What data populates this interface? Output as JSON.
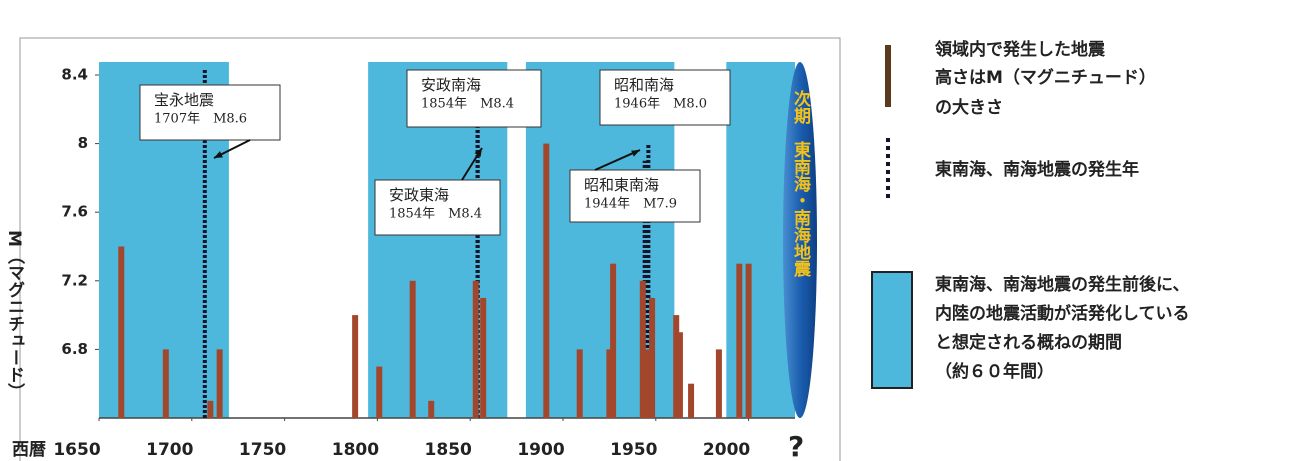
{
  "chart_data": {
    "type": "bar",
    "y_label": "M（マグニチュード）",
    "x_prefix": "西暦",
    "x_suffix": "?",
    "x": [
      1662,
      1686,
      1710,
      1715,
      1788,
      1801,
      1819,
      1829,
      1853,
      1857,
      1891,
      1909,
      1925,
      1927,
      1943,
      1945,
      1948,
      1961,
      1963,
      1969,
      1984,
      1995,
      2000
    ],
    "values": [
      7.4,
      6.8,
      6.5,
      6.8,
      7.0,
      6.7,
      7.2,
      6.5,
      7.2,
      7.1,
      8.0,
      6.8,
      6.8,
      7.3,
      7.2,
      6.8,
      7.1,
      7.0,
      6.9,
      6.6,
      6.8,
      7.3,
      7.3
    ],
    "color": "#a3472c",
    "xlim": [
      1650,
      2025
    ],
    "ylim": [
      6.4,
      8.4
    ],
    "xticks": [
      1650,
      1700,
      1750,
      1800,
      1850,
      1900,
      1950,
      2000
    ],
    "yticks": [
      8.4,
      8,
      7.6,
      7.2,
      6.8
    ],
    "periods": [
      [
        1650,
        1720
      ],
      [
        1795,
        1870
      ],
      [
        1880,
        1960
      ],
      [
        1988,
        2025
      ]
    ],
    "period_color": "#4db8dc",
    "next_label": "次期　東南海・南海地震",
    "events": [
      {
        "label": "宝永地震",
        "detail": "1707年　M8.6",
        "year": 1707,
        "magnitude": 8.6
      },
      {
        "label": "安政南海",
        "detail": "1854年　M8.4",
        "year": 1854,
        "magnitude": 8.4
      },
      {
        "label": "安政東海",
        "detail": "1854年　M8.4",
        "year": 1854,
        "magnitude": 8.4
      },
      {
        "label": "昭和南海",
        "detail": "1946年　M8.0",
        "year": 1946,
        "magnitude": 8.0
      },
      {
        "label": "昭和東南海",
        "detail": "1944年　M7.9",
        "year": 1944,
        "magnitude": 7.9
      }
    ],
    "legend": [
      {
        "lines": [
          "領域内で発生した地震",
          "高さはM（マグニチュード）",
          "の大きさ"
        ]
      },
      {
        "lines": [
          "東南海、南海地震の発生年"
        ]
      },
      {
        "lines": [
          "東南海、南海地震の発生前後に、",
          "内陸の地震活動が活発化している",
          "と想定される概ねの期間",
          "（約６０年間）"
        ]
      }
    ]
  }
}
